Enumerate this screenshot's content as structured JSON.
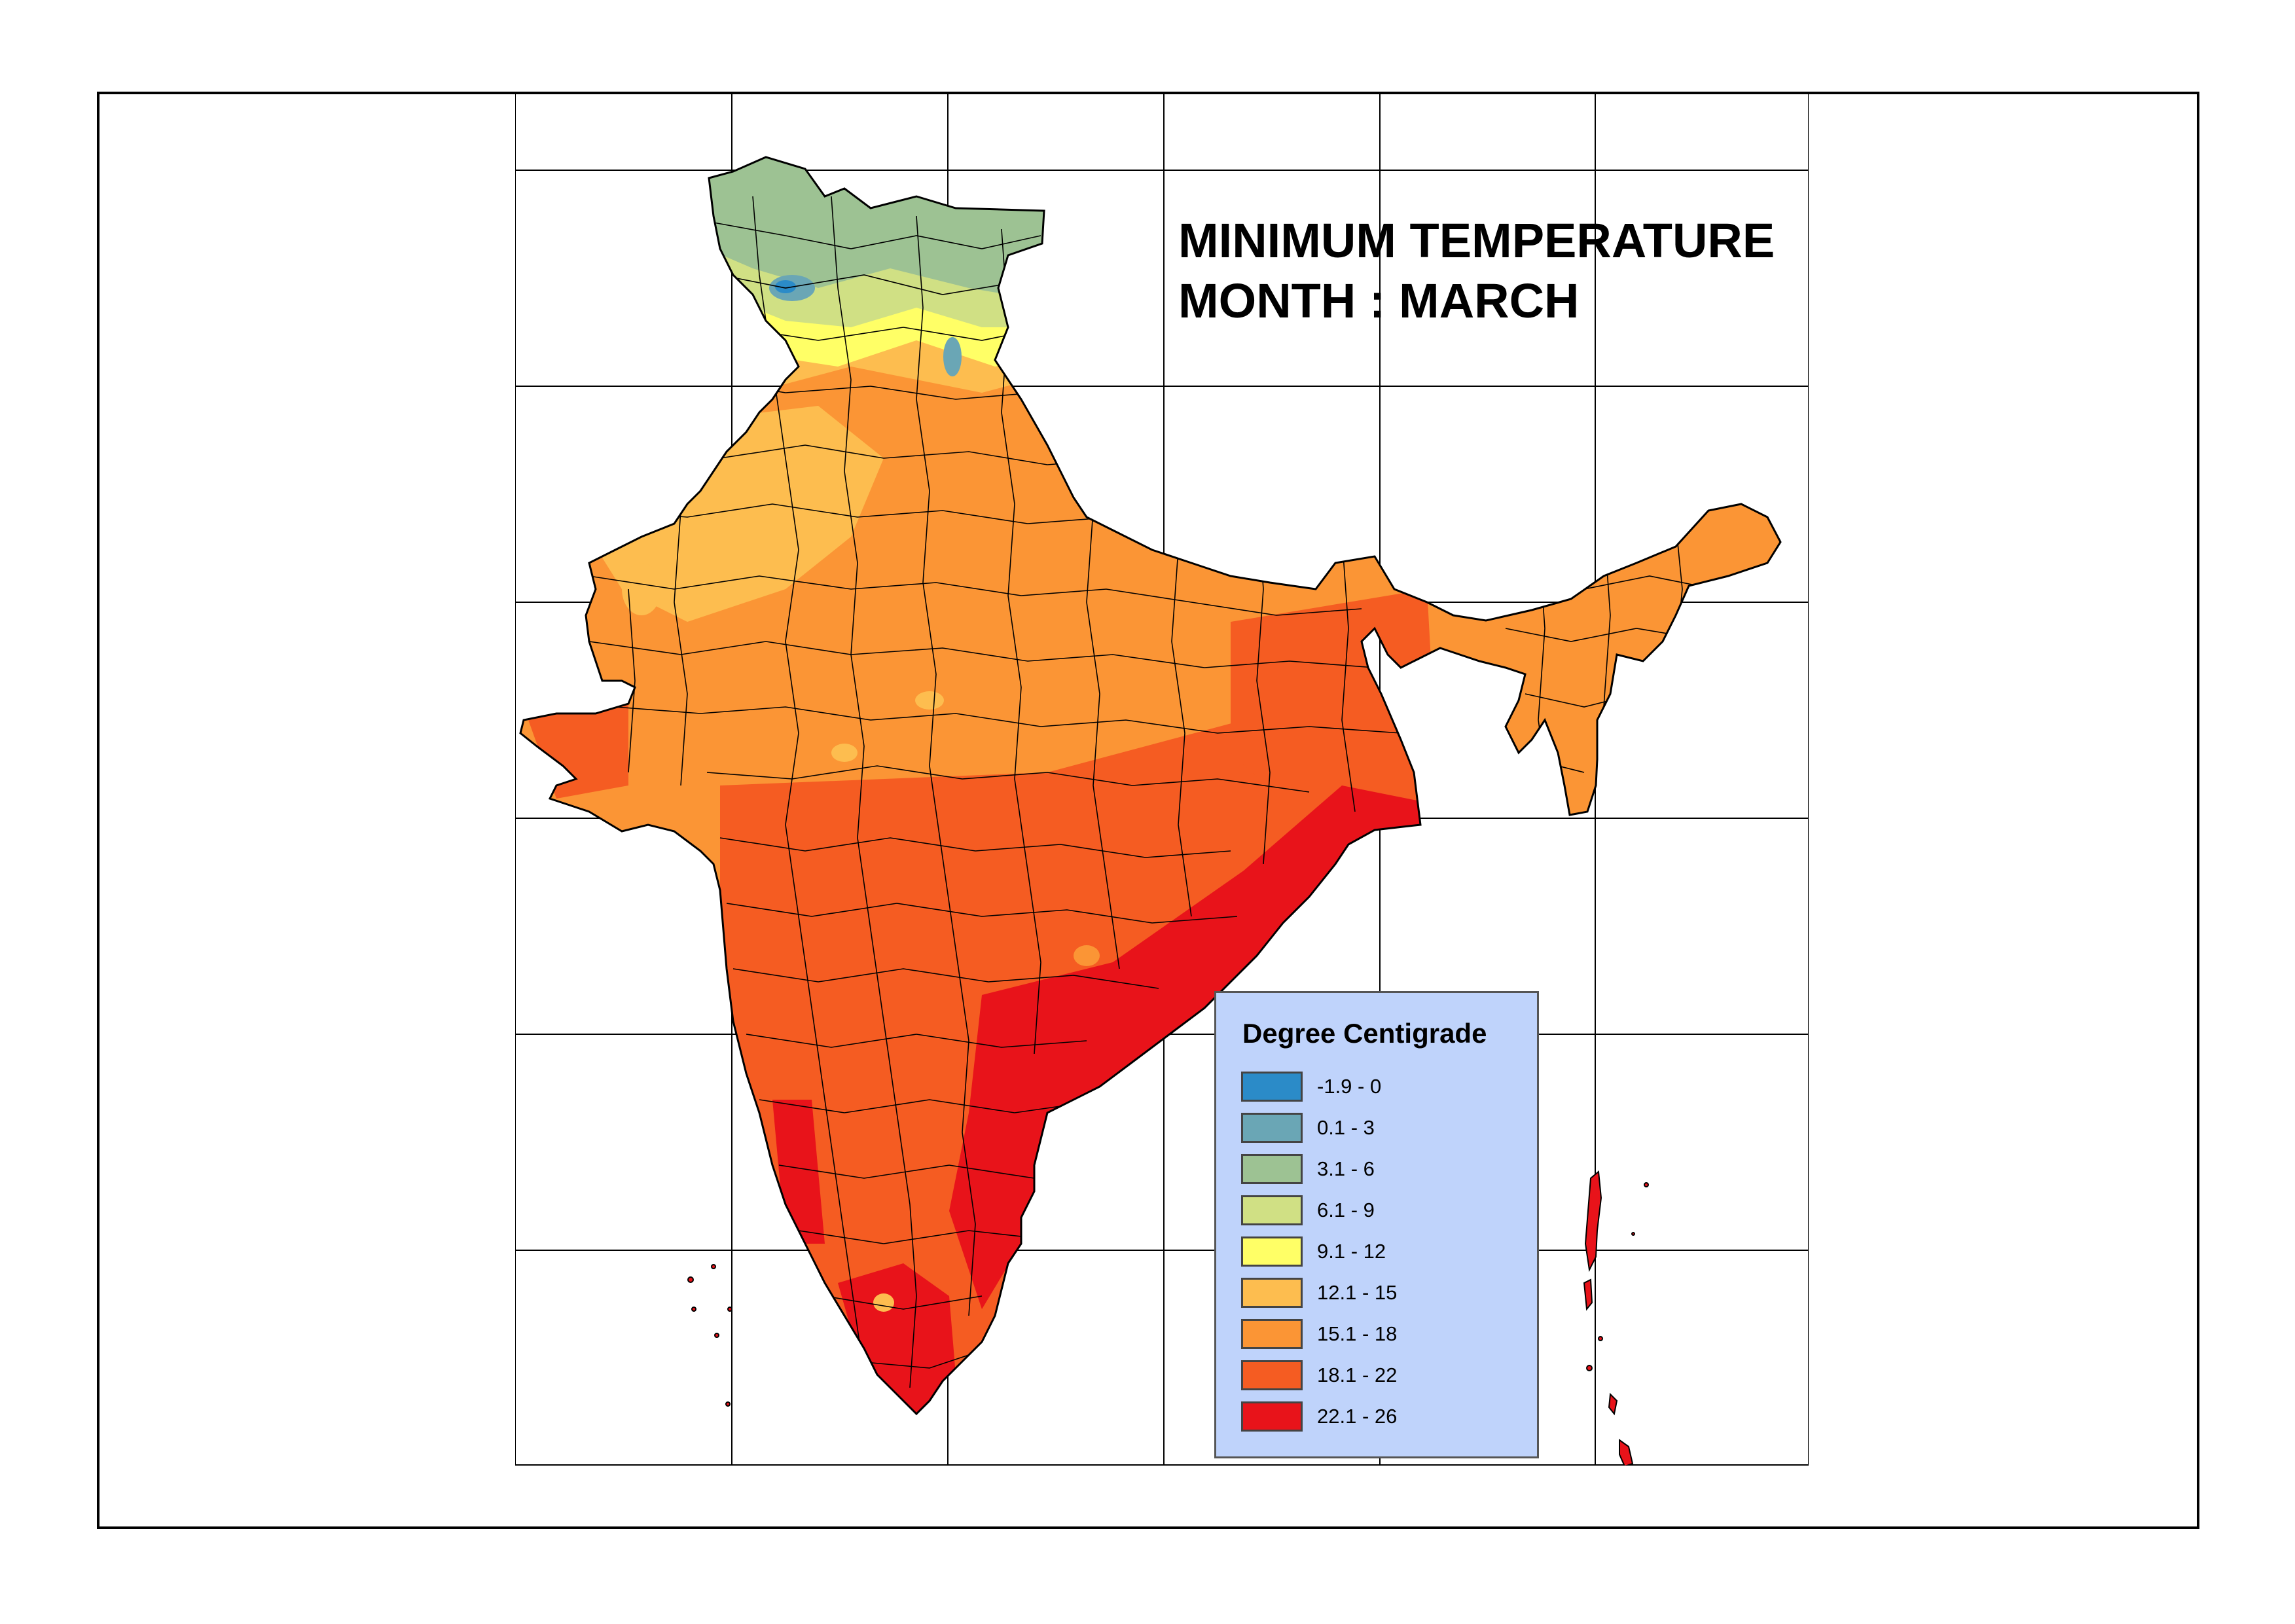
{
  "map": {
    "title_line1": "MINIMUM TEMPERATURE",
    "title_line2": "MONTH : MARCH"
  },
  "legend": {
    "title": "Degree Centigrade",
    "classes": [
      {
        "label": "-1.9 - 0",
        "color": "#2b8bc8"
      },
      {
        "label": "0.1 - 3",
        "color": "#6aa6b5"
      },
      {
        "label": "3.1 - 6",
        "color": "#9dc293"
      },
      {
        "label": "6.1 - 9",
        "color": "#d0e084"
      },
      {
        "label": "9.1 - 12",
        "color": "#ffff66"
      },
      {
        "label": "12.1 - 15",
        "color": "#fdbd4f"
      },
      {
        "label": "15.1 - 18",
        "color": "#fb9535"
      },
      {
        "label": "18.1 - 22",
        "color": "#f55c22"
      },
      {
        "label": "22.1 - 26",
        "color": "#e8131a"
      }
    ]
  }
}
